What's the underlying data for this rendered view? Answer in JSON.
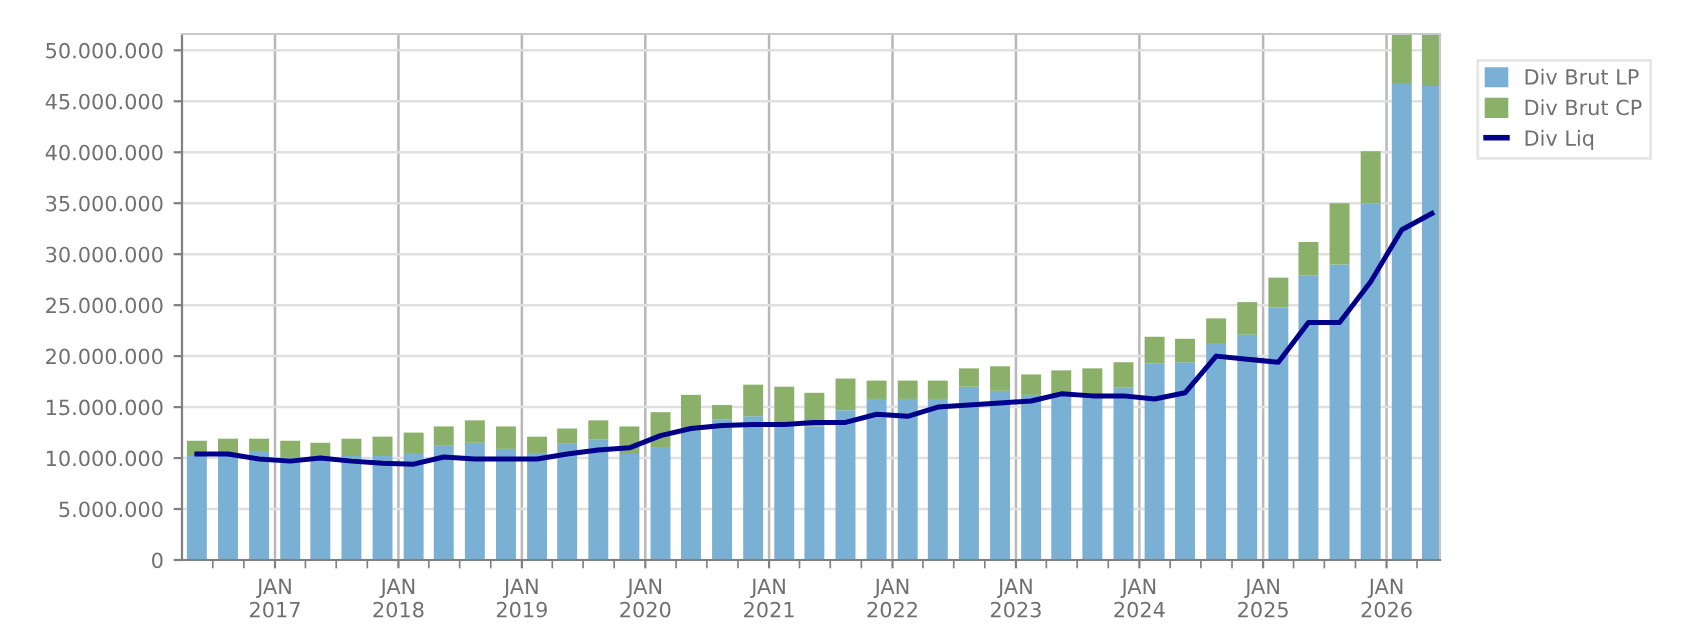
{
  "chart_data": {
    "type": "bar",
    "stacked": true,
    "x": [
      "2016-05-15",
      "2016-08-15",
      "2016-11-15",
      "2017-02-15",
      "2017-05-15",
      "2017-08-15",
      "2017-11-15",
      "2018-02-15",
      "2018-05-15",
      "2018-08-15",
      "2018-11-15",
      "2019-02-15",
      "2019-05-15",
      "2019-08-15",
      "2019-11-15",
      "2020-02-15",
      "2020-05-15",
      "2020-08-15",
      "2020-11-15",
      "2021-02-15",
      "2021-05-15",
      "2021-08-15",
      "2021-11-15",
      "2022-02-15",
      "2022-05-15",
      "2022-08-15",
      "2022-11-15",
      "2023-02-15",
      "2023-05-15",
      "2023-08-15",
      "2023-11-15",
      "2024-02-15",
      "2024-05-15",
      "2024-08-15",
      "2024-11-15",
      "2025-02-15",
      "2025-05-15",
      "2025-08-15",
      "2025-11-15",
      "2026-02-15",
      "2026-05-15"
    ],
    "series": [
      {
        "name": "Div Brut LP",
        "color": "#7ab0d4",
        "values": [
          10200000,
          10200000,
          10700000,
          10100000,
          10100000,
          10200000,
          10200000,
          10500000,
          11200000,
          11500000,
          10900000,
          10500000,
          11400000,
          11800000,
          10400000,
          11000000,
          12700000,
          13800000,
          14100000,
          13300000,
          13100000,
          14700000,
          15800000,
          15800000,
          15800000,
          17000000,
          16600000,
          16200000,
          16200000,
          16000000,
          16900000,
          19300000,
          19400000,
          21200000,
          22100000,
          24800000,
          27900000,
          29000000,
          35000000,
          46800000,
          46500000
        ]
      },
      {
        "name": "Div Brut CP",
        "color": "#8ab069",
        "values": [
          1500000,
          1700000,
          1200000,
          1600000,
          1400000,
          1700000,
          1900000,
          2000000,
          1900000,
          2200000,
          2200000,
          1600000,
          1500000,
          1900000,
          2700000,
          3500000,
          3500000,
          1400000,
          3100000,
          3700000,
          3300000,
          3100000,
          1800000,
          1800000,
          1800000,
          1800000,
          2400000,
          2000000,
          2400000,
          2800000,
          2500000,
          2600000,
          2300000,
          2500000,
          3200000,
          2900000,
          3300000,
          6000000,
          5100000,
          4800000,
          5100000
        ]
      },
      {
        "name": "Div Liq",
        "type": "line",
        "color": "#00008b",
        "values": [
          10400000,
          10400000,
          9900000,
          9700000,
          10000000,
          9700000,
          9500000,
          9400000,
          10100000,
          9900000,
          9900000,
          9900000,
          10400000,
          10800000,
          11000000,
          12200000,
          12900000,
          13200000,
          13300000,
          13300000,
          13500000,
          13500000,
          14300000,
          14100000,
          15000000,
          15200000,
          15400000,
          15600000,
          16300000,
          16100000,
          16100000,
          15800000,
          16400000,
          20000000,
          19700000,
          19400000,
          23300000,
          23300000,
          27300000,
          32400000,
          34000000
        ]
      }
    ],
    "xlim": [
      "2016-04-01",
      "2026-06-08"
    ],
    "xticks": [
      {
        "value": "2016-07-01",
        "label": null
      },
      {
        "value": "2016-10-01",
        "label": null
      },
      {
        "value": "2017-01-01",
        "label": "JAN\n2017"
      },
      {
        "value": "2017-04-01",
        "label": null
      },
      {
        "value": "2017-07-01",
        "label": null
      },
      {
        "value": "2017-10-01",
        "label": null
      },
      {
        "value": "2018-01-01",
        "label": "JAN\n2018"
      },
      {
        "value": "2018-04-01",
        "label": null
      },
      {
        "value": "2018-07-01",
        "label": null
      },
      {
        "value": "2018-10-01",
        "label": null
      },
      {
        "value": "2019-01-01",
        "label": "JAN\n2019"
      },
      {
        "value": "2019-04-01",
        "label": null
      },
      {
        "value": "2019-07-01",
        "label": null
      },
      {
        "value": "2019-10-01",
        "label": null
      },
      {
        "value": "2020-01-01",
        "label": "JAN\n2020"
      },
      {
        "value": "2020-04-01",
        "label": null
      },
      {
        "value": "2020-07-01",
        "label": null
      },
      {
        "value": "2020-10-01",
        "label": null
      },
      {
        "value": "2021-01-01",
        "label": "JAN\n2021"
      },
      {
        "value": "2021-04-01",
        "label": null
      },
      {
        "value": "2021-07-01",
        "label": null
      },
      {
        "value": "2021-10-01",
        "label": null
      },
      {
        "value": "2022-01-01",
        "label": "JAN\n2022"
      },
      {
        "value": "2022-04-01",
        "label": null
      },
      {
        "value": "2022-07-01",
        "label": null
      },
      {
        "value": "2022-10-01",
        "label": null
      },
      {
        "value": "2023-01-01",
        "label": "JAN\n2023"
      },
      {
        "value": "2023-04-01",
        "label": null
      },
      {
        "value": "2023-07-01",
        "label": null
      },
      {
        "value": "2023-10-01",
        "label": null
      },
      {
        "value": "2024-01-01",
        "label": "JAN\n2024"
      },
      {
        "value": "2024-04-01",
        "label": null
      },
      {
        "value": "2024-07-01",
        "label": null
      },
      {
        "value": "2024-10-01",
        "label": null
      },
      {
        "value": "2025-01-01",
        "label": "JAN\n2025"
      },
      {
        "value": "2025-04-01",
        "label": null
      },
      {
        "value": "2025-07-01",
        "label": null
      },
      {
        "value": "2025-10-01",
        "label": null
      },
      {
        "value": "2026-01-01",
        "label": "JAN\n2026"
      },
      {
        "value": "2026-04-01",
        "label": null
      }
    ],
    "ylim": [
      0,
      51600000
    ],
    "yticks": [
      {
        "value": 0,
        "label": "0"
      },
      {
        "value": 5000000,
        "label": "5.000.000"
      },
      {
        "value": 10000000,
        "label": "10.000.000"
      },
      {
        "value": 15000000,
        "label": "15.000.000"
      },
      {
        "value": 20000000,
        "label": "20.000.000"
      },
      {
        "value": 25000000,
        "label": "25.000.000"
      },
      {
        "value": 30000000,
        "label": "30.000.000"
      },
      {
        "value": 35000000,
        "label": "35.000.000"
      },
      {
        "value": 40000000,
        "label": "40.000.000"
      },
      {
        "value": 45000000,
        "label": "45.000.000"
      },
      {
        "value": 50000000,
        "label": "50.000.000"
      }
    ],
    "grid": true,
    "legend": "top right"
  }
}
